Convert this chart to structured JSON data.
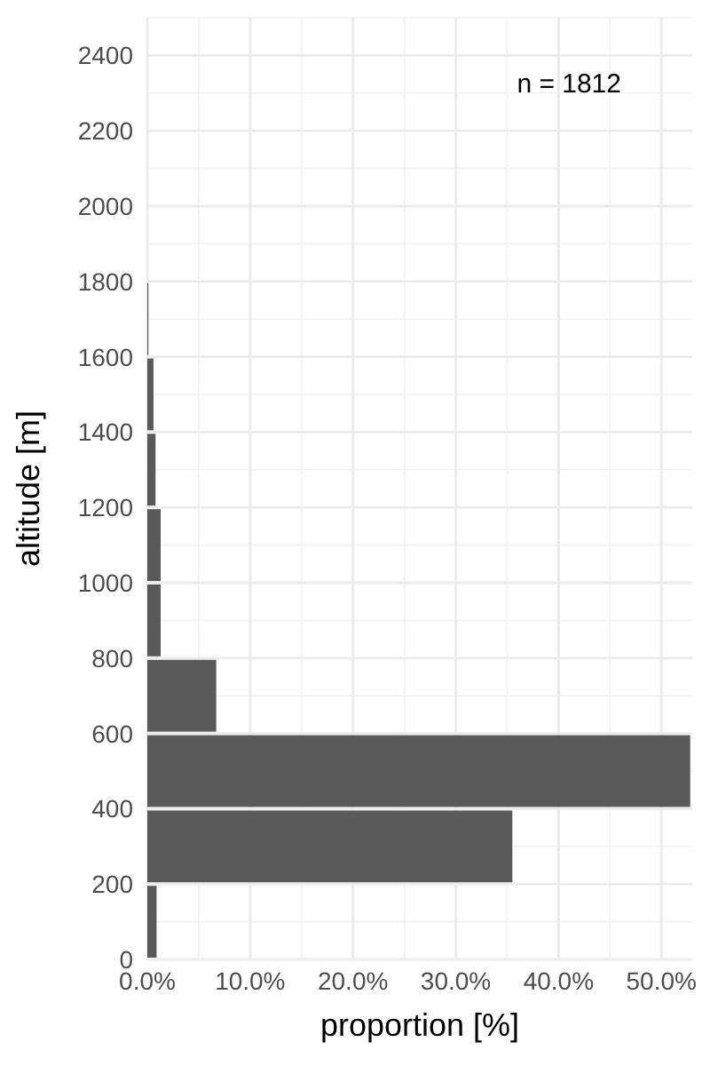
{
  "chart_data": {
    "type": "histogram",
    "orientation": "horizontal",
    "xlabel": "proportion [%]",
    "ylabel": "altitude [m]",
    "annotations": [
      "n = 1812"
    ],
    "bins": [
      0,
      200,
      400,
      600,
      800,
      1000,
      1200,
      1400,
      1600,
      1800
    ],
    "values": [
      0.9,
      35.5,
      52.8,
      6.7,
      1.3,
      1.3,
      0.8,
      0.6,
      0.1
    ],
    "color": "#595959",
    "xlim": [
      0,
      53
    ],
    "xticks": [
      {
        "value": 0,
        "label": "0.0%"
      },
      {
        "value": 10,
        "label": "10.0%"
      },
      {
        "value": 20,
        "label": "20.0%"
      },
      {
        "value": 30,
        "label": "30.0%"
      },
      {
        "value": 40,
        "label": "40.0%"
      },
      {
        "value": 50,
        "label": "50.0%"
      }
    ],
    "ylim": [
      0,
      2500
    ],
    "yticks": [
      0,
      200,
      400,
      600,
      800,
      1000,
      1200,
      1400,
      1600,
      1800,
      2000,
      2200,
      2400
    ],
    "grid": true
  }
}
